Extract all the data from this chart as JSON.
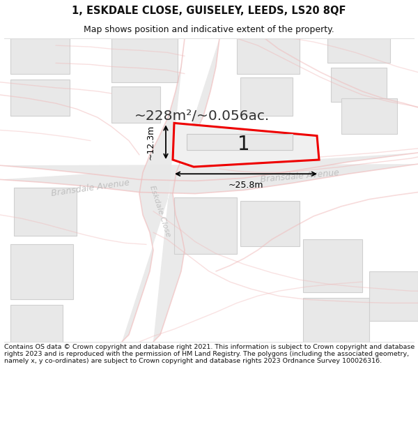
{
  "title_line1": "1, ESKDALE CLOSE, GUISELEY, LEEDS, LS20 8QF",
  "title_line2": "Map shows position and indicative extent of the property.",
  "area_label": "~228m²/~0.056ac.",
  "number_label": "1",
  "dim_width": "~25.8m",
  "dim_height": "~12.3m",
  "street_label_left": "Bransdale Avenue",
  "street_label_right": "Bransdale Avenue",
  "street_label_vert": "Eskdale Close",
  "footer_text": "Contains OS data © Crown copyright and database right 2021. This information is subject to Crown copyright and database rights 2023 and is reproduced with the permission of HM Land Registry. The polygons (including the associated geometry, namely x, y co-ordinates) are subject to Crown copyright and database rights 2023 Ordnance Survey 100026316.",
  "bg_color": "#ffffff",
  "map_bg": "#ffffff",
  "road_pink": "#f0b8b8",
  "building_fill": "#e8e8e8",
  "building_outline": "#d0d0d0",
  "property_fill": "#f0f0f0",
  "property_outline": "#ee0000",
  "street_text_color": "#bbbbbb",
  "title_color": "#111111",
  "footer_color": "#111111"
}
